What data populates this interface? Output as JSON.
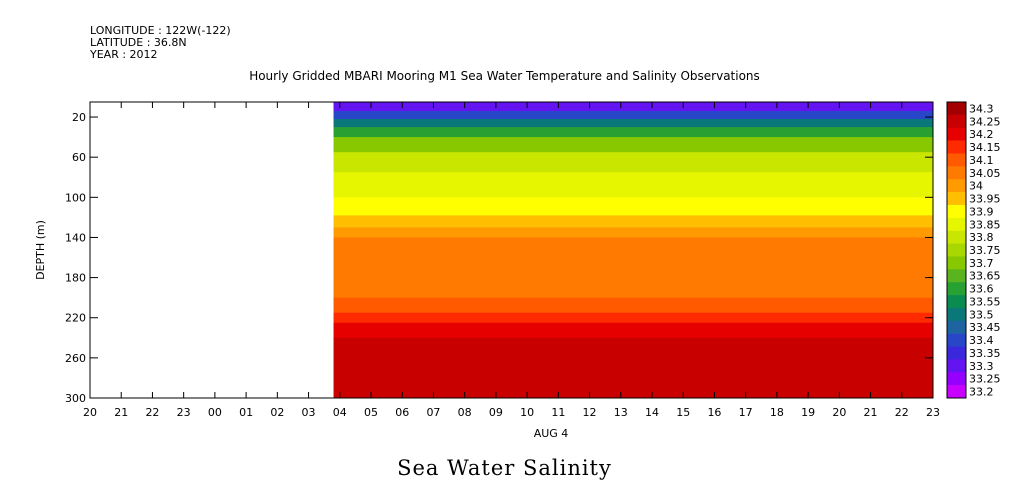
{
  "header": {
    "longitude": "LONGITUDE : 122W(-122)",
    "latitude": "LATITUDE : 36.8N",
    "year": "YEAR : 2012"
  },
  "chart_data": {
    "type": "heatmap",
    "title": "Hourly Gridded MBARI Mooring M1 Sea Water Temperature and Salinity Observations",
    "subtitle": "Sea Water Salinity",
    "xlabel": "AUG  4",
    "ylabel": "DEPTH (m)",
    "x_ticks": [
      "20",
      "21",
      "22",
      "23",
      "00",
      "01",
      "02",
      "03",
      "04",
      "05",
      "06",
      "07",
      "08",
      "09",
      "10",
      "11",
      "12",
      "13",
      "14",
      "15",
      "16",
      "17",
      "18",
      "19",
      "20",
      "21",
      "22",
      "23"
    ],
    "y_ticks": [
      20,
      60,
      100,
      140,
      180,
      220,
      260,
      300
    ],
    "ylim": [
      300,
      5
    ],
    "data_start_hour_index": 7.8,
    "colorbar": {
      "levels": [
        "34.3",
        "34.25",
        "34.2",
        "34.15",
        "34.1",
        "34.05",
        "34",
        "33.95",
        "33.9",
        "33.85",
        "33.8",
        "33.75",
        "33.7",
        "33.65",
        "33.6",
        "33.55",
        "33.5",
        "33.45",
        "33.4",
        "33.35",
        "33.3",
        "33.25",
        "33.2"
      ],
      "colors": [
        "#a50000",
        "#c80000",
        "#e60000",
        "#ff2a00",
        "#ff5a00",
        "#ff7a00",
        "#ff9a00",
        "#ffbf00",
        "#ffff00",
        "#e6f500",
        "#c8e600",
        "#a8d800",
        "#88c800",
        "#5ab41e",
        "#28a032",
        "#0a8c50",
        "#0a7878",
        "#1e64a0",
        "#2846c8",
        "#3c28dc",
        "#6414f0",
        "#9600ff",
        "#c800ff"
      ]
    },
    "profile": [
      {
        "depth": 5,
        "salinity": 33.28
      },
      {
        "depth": 14,
        "salinity": 33.4
      },
      {
        "depth": 22,
        "salinity": 33.5
      },
      {
        "depth": 30,
        "salinity": 33.6
      },
      {
        "depth": 40,
        "salinity": 33.7
      },
      {
        "depth": 55,
        "salinity": 33.8
      },
      {
        "depth": 75,
        "salinity": 33.85
      },
      {
        "depth": 100,
        "salinity": 33.9
      },
      {
        "depth": 118,
        "salinity": 33.95
      },
      {
        "depth": 130,
        "salinity": 34.0
      },
      {
        "depth": 140,
        "salinity": 34.05
      },
      {
        "depth": 200,
        "salinity": 34.1
      },
      {
        "depth": 215,
        "salinity": 34.15
      },
      {
        "depth": 225,
        "salinity": 34.2
      },
      {
        "depth": 240,
        "salinity": 34.25
      },
      {
        "depth": 300,
        "salinity": 34.2
      }
    ]
  }
}
